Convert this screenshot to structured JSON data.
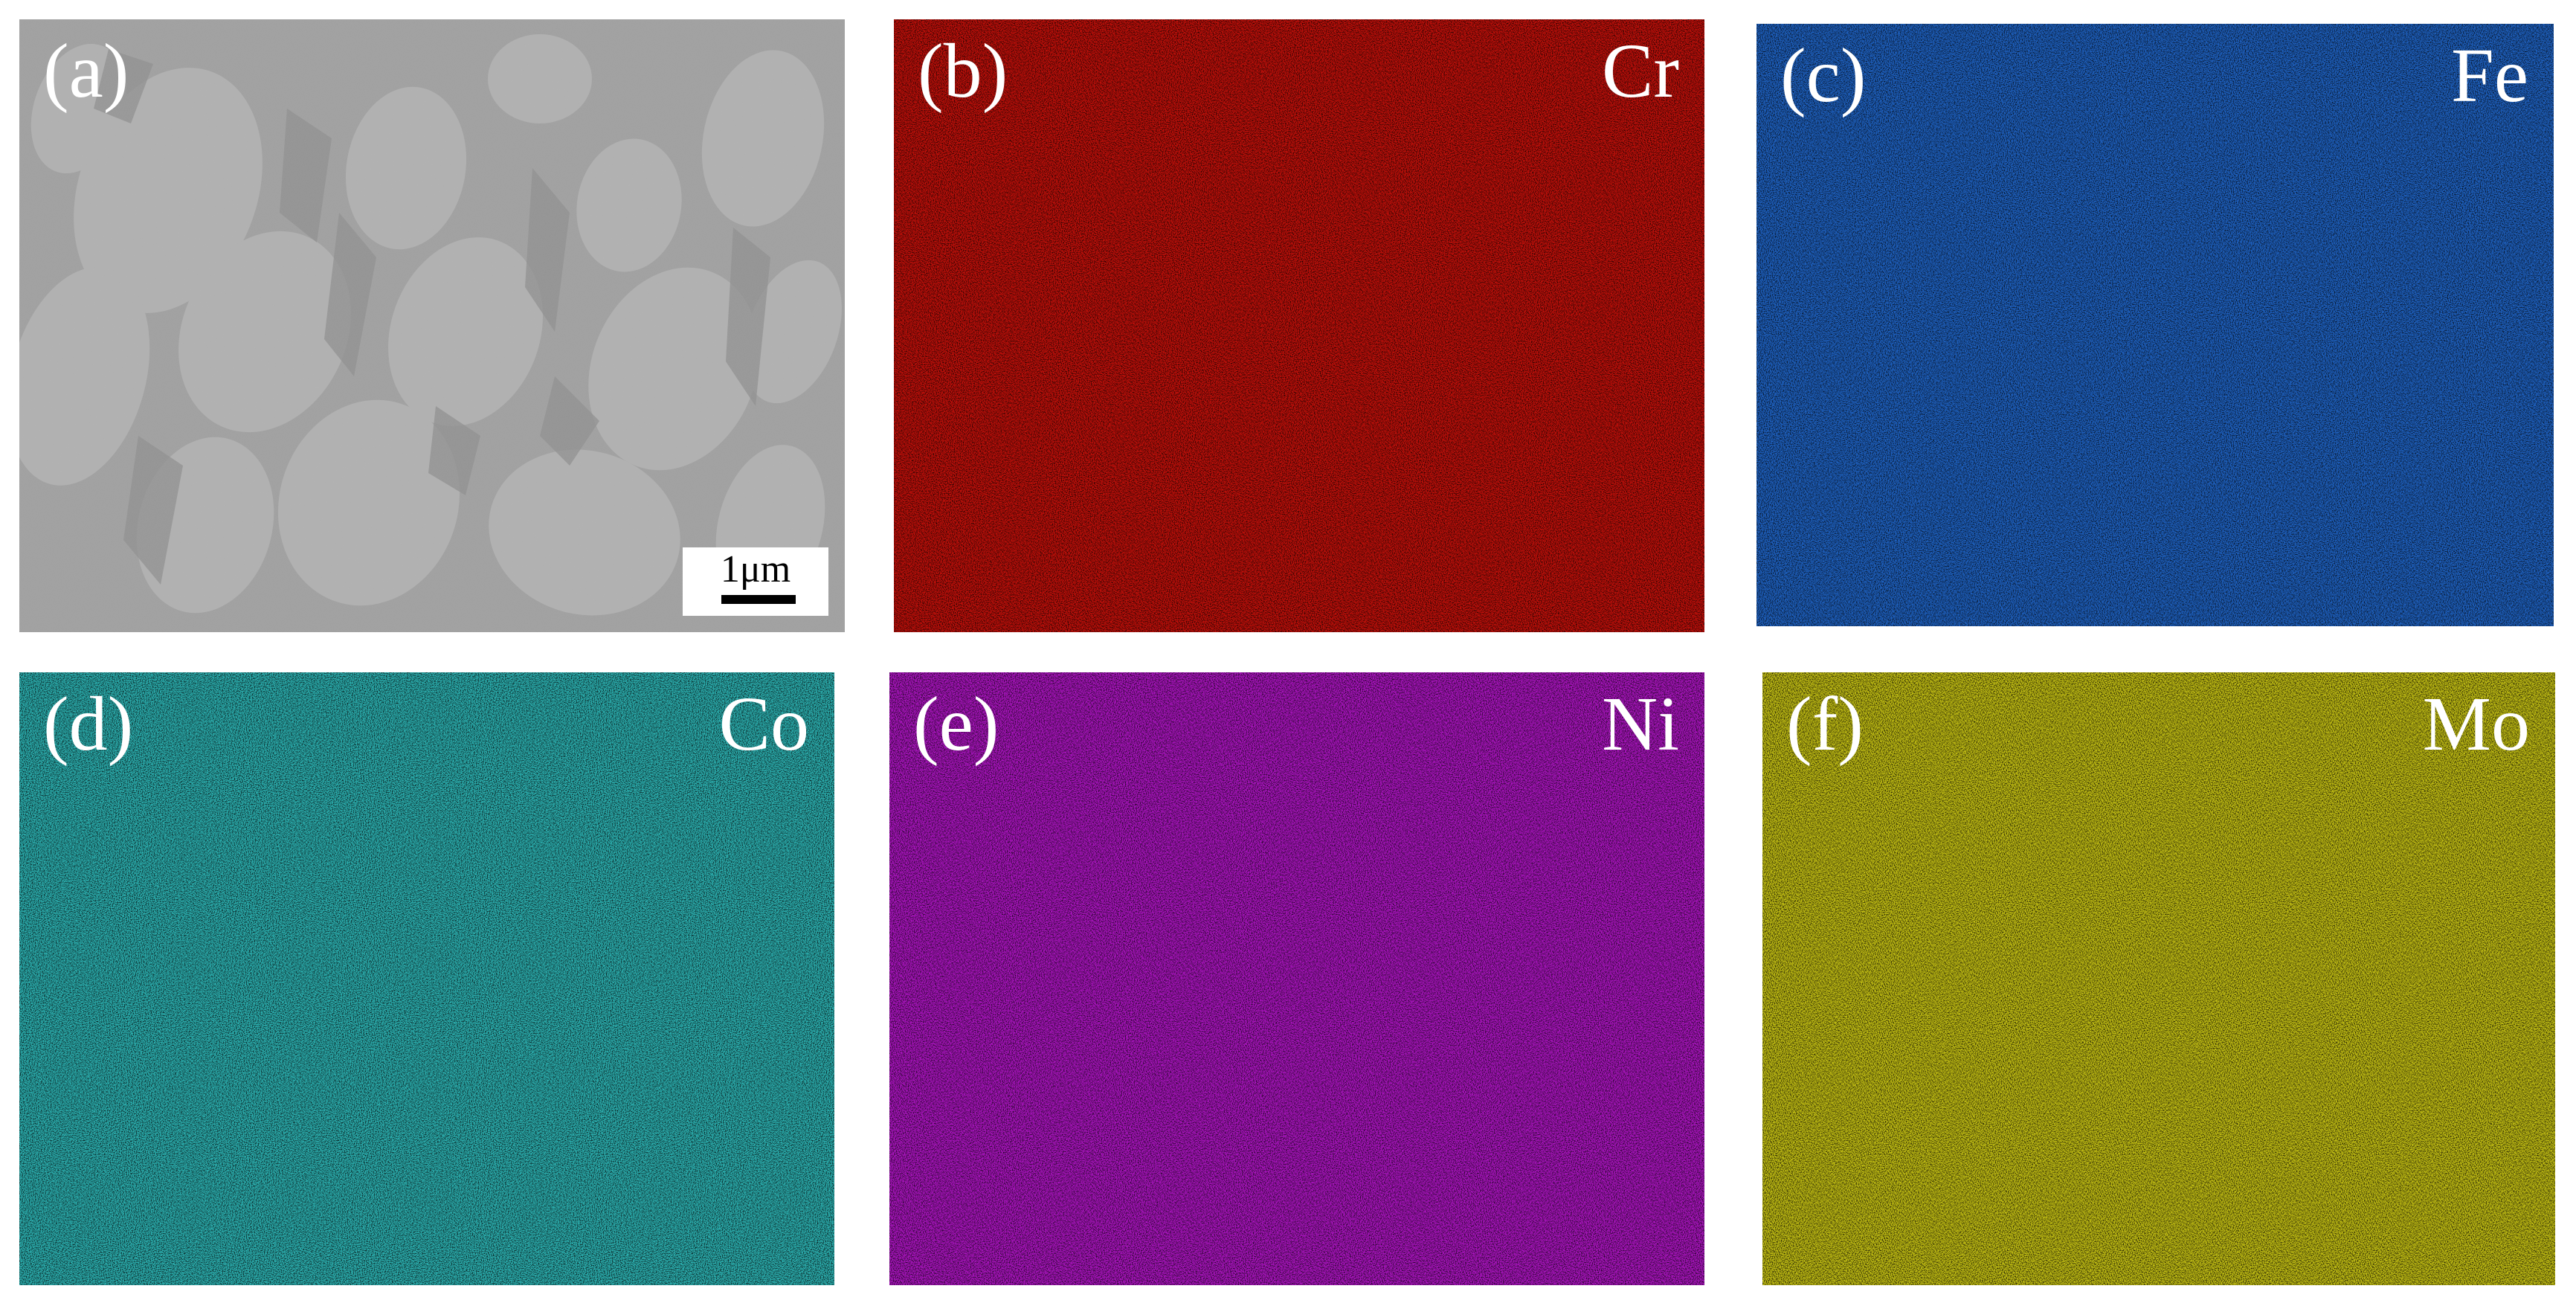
{
  "panels": [
    {
      "id": "a",
      "label": "(a)",
      "element": "",
      "tint": "#a9a9a9",
      "kind": "sem"
    },
    {
      "id": "b",
      "label": "(b)",
      "element": "Cr",
      "tint": "#c4100a",
      "kind": "map"
    },
    {
      "id": "c",
      "label": "(c)",
      "element": "Fe",
      "tint": "#1f63c4",
      "kind": "map"
    },
    {
      "id": "d",
      "label": "(d)",
      "element": "Co",
      "tint": "#2db4b4",
      "kind": "map"
    },
    {
      "id": "e",
      "label": "(e)",
      "element": "Ni",
      "tint": "#ad15c2",
      "kind": "map"
    },
    {
      "id": "f",
      "label": "(f)",
      "element": "Mo",
      "tint": "#c6c214",
      "kind": "map"
    }
  ],
  "scale_bar": {
    "label": "1μm"
  }
}
